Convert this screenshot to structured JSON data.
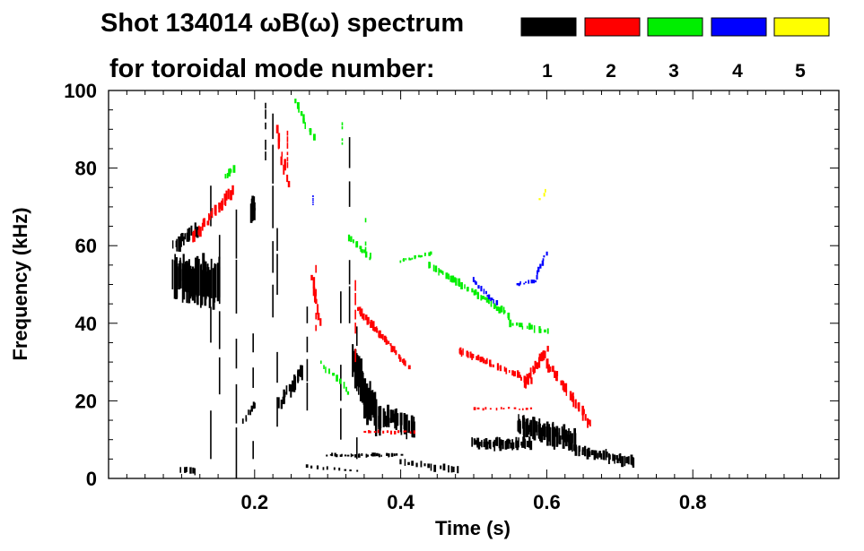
{
  "chart_data": {
    "type": "scatter",
    "subtype": "spectrogram",
    "title_line1": "Shot 134014 ωB(ω) spectrum",
    "title_line2": "for toroidal mode number:",
    "xlabel": "Time (s)",
    "ylabel": "Frequency (kHz)",
    "xlim": [
      0.0,
      1.0
    ],
    "ylim": [
      0,
      100
    ],
    "x_ticks": [
      "0.2",
      "0.4",
      "0.6",
      "0.8"
    ],
    "x_tick_values": [
      0.2,
      0.4,
      0.6,
      0.8
    ],
    "y_ticks": [
      "0",
      "20",
      "40",
      "60",
      "80",
      "100"
    ],
    "y_tick_values": [
      0,
      20,
      40,
      60,
      80,
      100
    ],
    "legend": [
      {
        "label": "1",
        "color": "#000000"
      },
      {
        "label": "2",
        "color": "#ff0000"
      },
      {
        "label": "3",
        "color": "#00ee00"
      },
      {
        "label": "4",
        "color": "#0000ff"
      },
      {
        "label": "5",
        "color": "#ffff00"
      }
    ],
    "series": [
      {
        "name": "n=1",
        "mode": 1,
        "color": "#000000",
        "traces": [
          {
            "t0": 0.09,
            "t1": 0.15,
            "f0": 52,
            "f1": 50,
            "df": 11,
            "n": 70
          },
          {
            "t0": 0.09,
            "t1": 0.12,
            "f0": 60,
            "f1": 64,
            "df": 4,
            "n": 18
          },
          {
            "t0": 0.195,
            "t1": 0.2,
            "f0": 68,
            "f1": 70,
            "df": 6,
            "n": 8
          },
          {
            "t0": 0.235,
            "t1": 0.265,
            "f0": 19,
            "f1": 28,
            "df": 4,
            "n": 18
          },
          {
            "t0": 0.185,
            "t1": 0.2,
            "f0": 15,
            "f1": 19,
            "df": 3,
            "n": 8
          },
          {
            "t0": 0.335,
            "t1": 0.37,
            "f0": 30,
            "f1": 15,
            "df": 9,
            "n": 40
          },
          {
            "t0": 0.35,
            "t1": 0.42,
            "f0": 18,
            "f1": 13,
            "df": 6,
            "n": 45
          },
          {
            "t0": 0.3,
            "t1": 0.4,
            "f0": 6,
            "f1": 6,
            "df": 1,
            "n": 30
          },
          {
            "t0": 0.4,
            "t1": 0.48,
            "f0": 4,
            "f1": 2,
            "df": 2,
            "n": 16
          },
          {
            "t0": 0.5,
            "t1": 0.58,
            "f0": 9,
            "f1": 9,
            "df": 3,
            "n": 50
          },
          {
            "t0": 0.56,
            "t1": 0.64,
            "f0": 14,
            "f1": 10,
            "df": 6,
            "n": 60
          },
          {
            "t0": 0.63,
            "t1": 0.72,
            "f0": 8,
            "f1": 4,
            "df": 3,
            "n": 45
          },
          {
            "t0": 0.1,
            "t1": 0.12,
            "f0": 2,
            "f1": 2,
            "df": 2,
            "n": 6
          },
          {
            "t0": 0.27,
            "t1": 0.34,
            "f0": 3,
            "f1": 2,
            "df": 1,
            "n": 10
          }
        ],
        "streaks": [
          {
            "t": 0.14,
            "f0": 5,
            "f1": 95
          },
          {
            "t": 0.152,
            "f0": 10,
            "f1": 80
          },
          {
            "t": 0.175,
            "f0": 0,
            "f1": 85
          },
          {
            "t": 0.198,
            "f0": 5,
            "f1": 60
          },
          {
            "t": 0.225,
            "f0": 30,
            "f1": 99
          },
          {
            "t": 0.231,
            "f0": 2,
            "f1": 70
          },
          {
            "t": 0.272,
            "f0": 10,
            "f1": 55
          },
          {
            "t": 0.318,
            "f0": 0,
            "f1": 60
          },
          {
            "t": 0.33,
            "f0": 30,
            "f1": 90
          },
          {
            "t": 0.34,
            "f0": 5,
            "f1": 40
          },
          {
            "t": 0.215,
            "f0": 82,
            "f1": 98
          }
        ]
      },
      {
        "name": "n=2",
        "mode": 2,
        "color": "#ff0000",
        "traces": [
          {
            "t0": 0.115,
            "t1": 0.17,
            "f0": 62,
            "f1": 74,
            "df": 3,
            "n": 26
          },
          {
            "t0": 0.23,
            "t1": 0.245,
            "f0": 90,
            "f1": 76,
            "df": 3,
            "n": 10
          },
          {
            "t0": 0.34,
            "t1": 0.41,
            "f0": 44,
            "f1": 29,
            "df": 2,
            "n": 40
          },
          {
            "t0": 0.48,
            "t1": 0.58,
            "f0": 33,
            "f1": 25,
            "df": 2,
            "n": 40
          },
          {
            "t0": 0.57,
            "t1": 0.6,
            "f0": 24,
            "f1": 33,
            "df": 3,
            "n": 20
          },
          {
            "t0": 0.6,
            "t1": 0.66,
            "f0": 30,
            "f1": 14,
            "df": 3,
            "n": 30
          },
          {
            "t0": 0.35,
            "t1": 0.42,
            "f0": 12,
            "f1": 12,
            "df": 1,
            "n": 14
          },
          {
            "t0": 0.5,
            "t1": 0.58,
            "f0": 18,
            "f1": 18,
            "df": 1,
            "n": 14
          },
          {
            "t0": 0.28,
            "t1": 0.29,
            "f0": 52,
            "f1": 40,
            "df": 3,
            "n": 8
          }
        ],
        "streaks": [
          {
            "t": 0.284,
            "f0": 38,
            "f1": 56
          },
          {
            "t": 0.338,
            "f0": 30,
            "f1": 52
          },
          {
            "t": 0.245,
            "f0": 80,
            "f1": 90
          }
        ]
      },
      {
        "name": "n=3",
        "mode": 3,
        "color": "#00ee00",
        "traces": [
          {
            "t0": 0.255,
            "t1": 0.28,
            "f0": 97,
            "f1": 88,
            "df": 2,
            "n": 10
          },
          {
            "t0": 0.33,
            "t1": 0.36,
            "f0": 62,
            "f1": 57,
            "df": 2,
            "n": 12
          },
          {
            "t0": 0.4,
            "t1": 0.44,
            "f0": 56,
            "f1": 58,
            "df": 1,
            "n": 16
          },
          {
            "t0": 0.44,
            "t1": 0.55,
            "f0": 55,
            "f1": 42,
            "df": 2,
            "n": 40
          },
          {
            "t0": 0.55,
            "t1": 0.6,
            "f0": 40,
            "f1": 38,
            "df": 2,
            "n": 14
          },
          {
            "t0": 0.29,
            "t1": 0.33,
            "f0": 30,
            "f1": 22,
            "df": 2,
            "n": 10
          },
          {
            "t0": 0.16,
            "t1": 0.17,
            "f0": 78,
            "f1": 80,
            "df": 2,
            "n": 6
          }
        ],
        "streaks": [
          {
            "t": 0.352,
            "f0": 58,
            "f1": 70
          },
          {
            "t": 0.32,
            "f0": 86,
            "f1": 92
          }
        ]
      },
      {
        "name": "n=4",
        "mode": 4,
        "color": "#0000ff",
        "traces": [
          {
            "t0": 0.5,
            "t1": 0.53,
            "f0": 51,
            "f1": 45,
            "df": 1.5,
            "n": 14
          },
          {
            "t0": 0.56,
            "t1": 0.585,
            "f0": 50,
            "f1": 51,
            "df": 1,
            "n": 10
          },
          {
            "t0": 0.585,
            "t1": 0.6,
            "f0": 52,
            "f1": 58,
            "df": 1.5,
            "n": 8
          }
        ],
        "streaks": [
          {
            "t": 0.28,
            "f0": 70,
            "f1": 73
          }
        ]
      },
      {
        "name": "n=5",
        "mode": 5,
        "color": "#ffff00",
        "traces": [
          {
            "t0": 0.59,
            "t1": 0.6,
            "f0": 72,
            "f1": 74,
            "df": 1,
            "n": 3
          }
        ],
        "streaks": []
      }
    ]
  }
}
